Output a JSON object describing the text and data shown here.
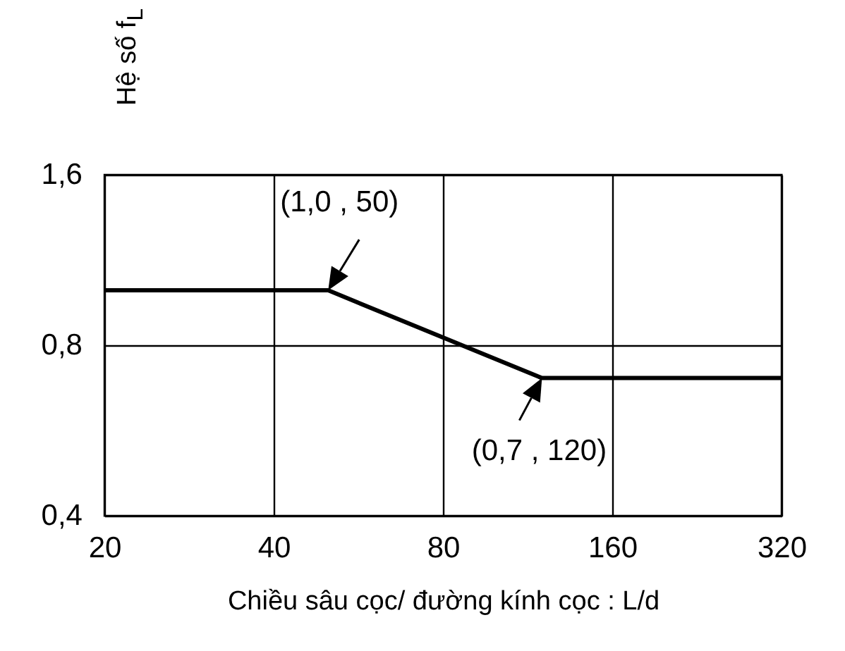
{
  "chart_data": {
    "type": "line",
    "xlabel": "Chiều sâu cọc/ đường kính cọc  : L/d",
    "ylabel": "Hệ số f$_{L}$",
    "x": [
      20,
      50,
      120,
      320
    ],
    "series": [
      {
        "color": "#000000",
        "values": [
          1.0,
          1.0,
          0.7,
          0.7
        ]
      }
    ],
    "xlim": [
      20,
      320
    ],
    "xticks": [
      20,
      40,
      80,
      160,
      320
    ],
    "ylim": [
      0.4,
      1.6
    ],
    "yticks": [
      {
        "value": 0.4,
        "label": "0,4"
      },
      {
        "value": 0.8,
        "label": "0,8"
      },
      {
        "value": 1.6,
        "label": "1,6"
      }
    ],
    "log": "xy",
    "grid": true,
    "marker": "none",
    "line_style": "solid",
    "annotations": [
      {
        "text": "(1,0 , 50)",
        "x": 50,
        "y": 1.0
      },
      {
        "text": "(0,7 , 120)",
        "x": 120,
        "y": 0.7
      }
    ]
  }
}
